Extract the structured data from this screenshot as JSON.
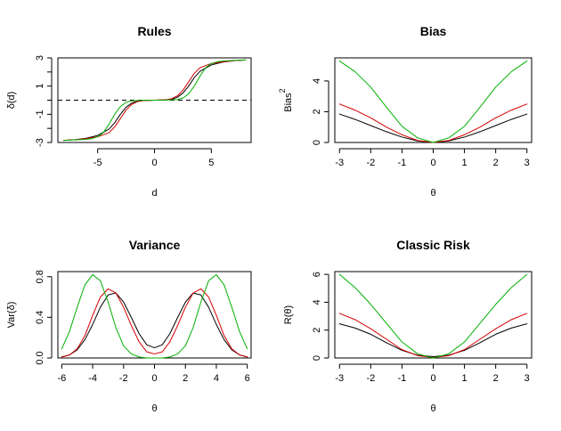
{
  "colors": {
    "black": "#000000",
    "red": "#d40000",
    "green": "#00b000"
  },
  "chart_data": [
    {
      "type": "line",
      "title": "Rules",
      "xlabel": "d",
      "ylabel": "δ(d)",
      "xlim": [
        -8.5,
        8.5
      ],
      "ylim": [
        -3,
        3
      ],
      "xticks": [
        -5,
        0,
        5
      ],
      "yticks": [
        -3,
        -1,
        1,
        3
      ],
      "refline": {
        "y": 0,
        "style": "dashed"
      },
      "series": [
        {
          "color": "#000000",
          "x": [
            -8,
            -7,
            -6,
            -5,
            -4,
            -3.5,
            -3,
            -2.5,
            -2,
            -1.5,
            -1,
            0,
            1,
            1.5,
            2,
            2.5,
            3,
            3.5,
            4,
            5,
            6,
            7,
            8
          ],
          "y": [
            -2.85,
            -2.8,
            -2.7,
            -2.5,
            -2.05,
            -1.6,
            -1.0,
            -0.5,
            -0.2,
            -0.07,
            -0.02,
            0,
            0.02,
            0.07,
            0.2,
            0.5,
            1.0,
            1.6,
            2.05,
            2.5,
            2.7,
            2.8,
            2.85
          ]
        },
        {
          "color": "#d40000",
          "x": [
            -8,
            -7,
            -6,
            -5,
            -4,
            -3.5,
            -3,
            -2.5,
            -2,
            -1.5,
            -1,
            0,
            1,
            1.5,
            2,
            2.5,
            3,
            3.5,
            4,
            5,
            6,
            7,
            8
          ],
          "y": [
            -2.85,
            -2.8,
            -2.72,
            -2.6,
            -2.3,
            -1.9,
            -1.3,
            -0.7,
            -0.3,
            -0.1,
            -0.03,
            0,
            0.03,
            0.1,
            0.3,
            0.7,
            1.3,
            1.9,
            2.3,
            2.6,
            2.72,
            2.8,
            2.85
          ]
        },
        {
          "color": "#00b000",
          "x": [
            -8,
            -7,
            -6,
            -5.5,
            -5,
            -4.5,
            -4,
            -3.5,
            -3,
            -2.5,
            -2,
            -1,
            0,
            1,
            2,
            2.5,
            3,
            3.5,
            4,
            4.5,
            5,
            5.5,
            6,
            7,
            8
          ],
          "y": [
            -2.85,
            -2.82,
            -2.78,
            -2.72,
            -2.6,
            -2.3,
            -1.7,
            -1.0,
            -0.45,
            -0.15,
            -0.05,
            -0.01,
            0,
            0.01,
            0.05,
            0.15,
            0.45,
            1.0,
            1.7,
            2.3,
            2.6,
            2.72,
            2.78,
            2.82,
            2.85
          ]
        }
      ]
    },
    {
      "type": "line",
      "title": "Bias",
      "xlabel": "θ",
      "ylabel": "Bias",
      "ylabel_sup": "2",
      "xlim": [
        -3.15,
        3.15
      ],
      "ylim": [
        0,
        5.5
      ],
      "xticks": [
        -3,
        -2,
        -1,
        0,
        1,
        2,
        3
      ],
      "yticks": [
        0,
        2,
        4
      ],
      "series": [
        {
          "color": "#000000",
          "x": [
            -3,
            -2.5,
            -2,
            -1.5,
            -1,
            -0.5,
            0,
            0.5,
            1,
            1.5,
            2,
            2.5,
            3
          ],
          "y": [
            1.85,
            1.5,
            1.1,
            0.7,
            0.35,
            0.1,
            0,
            0.1,
            0.35,
            0.7,
            1.1,
            1.5,
            1.85
          ]
        },
        {
          "color": "#d40000",
          "x": [
            -3,
            -2.5,
            -2,
            -1.5,
            -1,
            -0.5,
            0,
            0.5,
            1,
            1.5,
            2,
            2.5,
            3
          ],
          "y": [
            2.5,
            2.1,
            1.6,
            1.0,
            0.5,
            0.13,
            0,
            0.13,
            0.5,
            1.0,
            1.6,
            2.1,
            2.5
          ]
        },
        {
          "color": "#00b000",
          "x": [
            -3,
            -2.5,
            -2,
            -1.5,
            -1,
            -0.5,
            0,
            0.5,
            1,
            1.5,
            2,
            2.5,
            3
          ],
          "y": [
            5.3,
            4.6,
            3.6,
            2.3,
            1.05,
            0.3,
            0,
            0.3,
            1.05,
            2.3,
            3.6,
            4.6,
            5.3
          ]
        }
      ]
    },
    {
      "type": "line",
      "title": "Variance",
      "xlabel": "θ",
      "ylabel": "Var(δ)",
      "xlim": [
        -6.25,
        6.25
      ],
      "ylim": [
        0,
        0.85
      ],
      "xticks": [
        -6,
        -4,
        -2,
        0,
        2,
        4,
        6
      ],
      "yticks": [
        0.0,
        0.4,
        0.8
      ],
      "ytick_labels": [
        "0.0",
        "0.4",
        "0.8"
      ],
      "series": [
        {
          "color": "#000000",
          "x": [
            -6,
            -5.5,
            -5,
            -4.5,
            -4,
            -3.5,
            -3,
            -2.5,
            -2,
            -1.5,
            -1,
            -0.5,
            0,
            0.5,
            1,
            1.5,
            2,
            2.5,
            3,
            3.5,
            4,
            4.5,
            5,
            5.5,
            6
          ],
          "y": [
            0.01,
            0.03,
            0.08,
            0.18,
            0.33,
            0.5,
            0.62,
            0.64,
            0.55,
            0.4,
            0.24,
            0.13,
            0.1,
            0.13,
            0.24,
            0.4,
            0.55,
            0.64,
            0.62,
            0.5,
            0.33,
            0.18,
            0.08,
            0.03,
            0.01
          ]
        },
        {
          "color": "#d40000",
          "x": [
            -6,
            -5.5,
            -5,
            -4.5,
            -4,
            -3.5,
            -3,
            -2.5,
            -2,
            -1.5,
            -1,
            -0.5,
            0,
            0.5,
            1,
            1.5,
            2,
            2.5,
            3,
            3.5,
            4,
            4.5,
            5,
            5.5,
            6
          ],
          "y": [
            0.01,
            0.03,
            0.09,
            0.22,
            0.42,
            0.6,
            0.68,
            0.64,
            0.5,
            0.32,
            0.16,
            0.06,
            0.04,
            0.06,
            0.16,
            0.32,
            0.5,
            0.64,
            0.68,
            0.6,
            0.42,
            0.22,
            0.09,
            0.03,
            0.01
          ]
        },
        {
          "color": "#00b000",
          "x": [
            -6,
            -5.5,
            -5,
            -4.5,
            -4,
            -3.5,
            -3,
            -2.5,
            -2,
            -1.5,
            -1,
            -0.5,
            0,
            0.5,
            1,
            1.5,
            2,
            2.5,
            3,
            3.5,
            4,
            4.5,
            5,
            5.5,
            6
          ],
          "y": [
            0.09,
            0.26,
            0.5,
            0.72,
            0.82,
            0.76,
            0.55,
            0.3,
            0.12,
            0.04,
            0.01,
            0.0,
            0.0,
            0.0,
            0.01,
            0.04,
            0.12,
            0.3,
            0.55,
            0.76,
            0.82,
            0.72,
            0.5,
            0.26,
            0.09
          ]
        }
      ]
    },
    {
      "type": "line",
      "title": "Classic Risk",
      "xlabel": "θ",
      "ylabel": "R(θ)",
      "xlim": [
        -3.15,
        3.15
      ],
      "ylim": [
        0,
        6.2
      ],
      "xticks": [
        -3,
        -2,
        -1,
        0,
        1,
        2,
        3
      ],
      "yticks": [
        0,
        2,
        4,
        6
      ],
      "series": [
        {
          "color": "#000000",
          "x": [
            -3,
            -2.5,
            -2,
            -1.5,
            -1,
            -0.5,
            0,
            0.5,
            1,
            1.5,
            2,
            2.5,
            3
          ],
          "y": [
            2.45,
            2.15,
            1.7,
            1.1,
            0.55,
            0.2,
            0.1,
            0.2,
            0.55,
            1.1,
            1.7,
            2.15,
            2.45
          ]
        },
        {
          "color": "#d40000",
          "x": [
            -3,
            -2.5,
            -2,
            -1.5,
            -1,
            -0.5,
            0,
            0.5,
            1,
            1.5,
            2,
            2.5,
            3
          ],
          "y": [
            3.2,
            2.75,
            2.1,
            1.35,
            0.6,
            0.17,
            0.04,
            0.17,
            0.6,
            1.35,
            2.1,
            2.75,
            3.2
          ]
        },
        {
          "color": "#00b000",
          "x": [
            -3,
            -2.5,
            -2,
            -1.5,
            -1,
            -0.5,
            0,
            0.5,
            1,
            1.5,
            2,
            2.5,
            3
          ],
          "y": [
            6.0,
            5.05,
            3.85,
            2.5,
            1.15,
            0.3,
            0.0,
            0.3,
            1.15,
            2.5,
            3.85,
            5.05,
            6.0
          ]
        }
      ]
    }
  ]
}
